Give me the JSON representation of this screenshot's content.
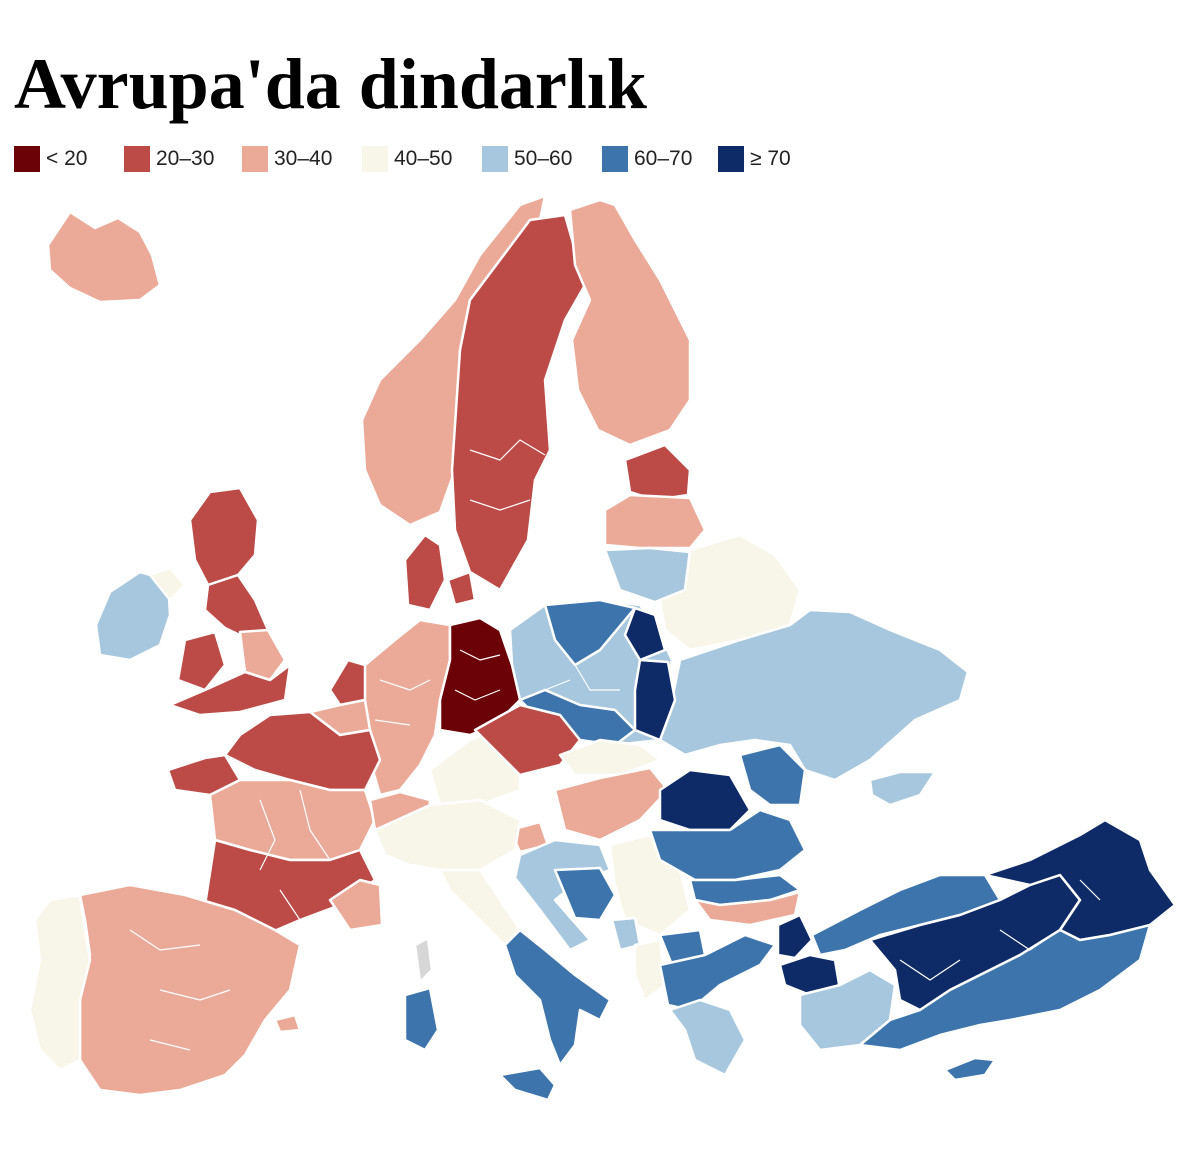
{
  "title": "Avrupa'da dindarlık",
  "legend": [
    {
      "label": "< 20",
      "color": "#6b0208"
    },
    {
      "label": "20–30",
      "color": "#bc4a46"
    },
    {
      "label": "30–40",
      "color": "#ebaa98"
    },
    {
      "label": "40–50",
      "color": "#f8f5e9"
    },
    {
      "label": "50–60",
      "color": "#a7c7de"
    },
    {
      "label": "60–70",
      "color": "#3d74ac"
    },
    {
      "label": "≥ 70",
      "color": "#0e2b68"
    }
  ],
  "no_data_color": "#d7d7d7"
}
